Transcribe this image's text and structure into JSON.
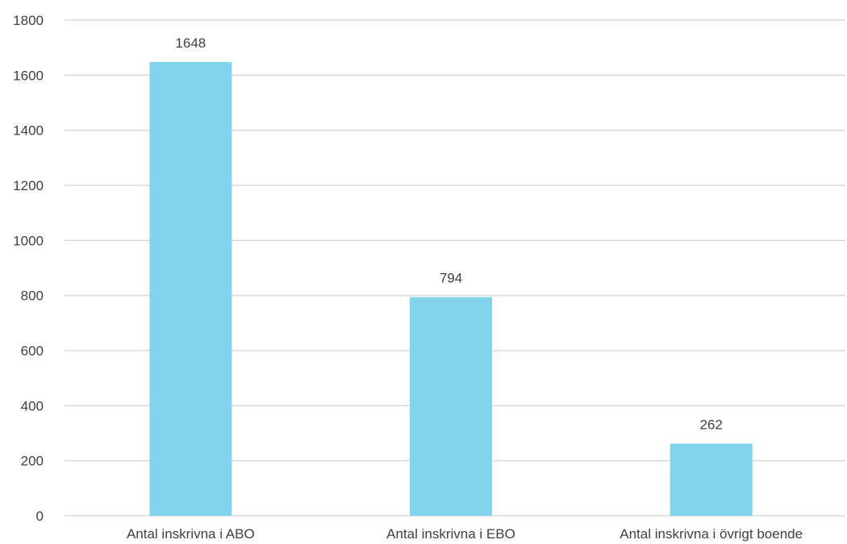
{
  "chart_data": {
    "type": "bar",
    "categories": [
      "Antal inskrivna i ABO",
      "Antal inskrivna i EBO",
      "Antal inskrivna i övrigt boende"
    ],
    "values": [
      1648,
      794,
      262
    ],
    "data_labels": [
      "1648",
      "794",
      "262"
    ],
    "ylim": [
      0,
      1800
    ],
    "yticks": [
      0,
      200,
      400,
      600,
      800,
      1000,
      1200,
      1400,
      1600,
      1800
    ],
    "title": "",
    "xlabel": "",
    "ylabel": "",
    "grid": true,
    "legend": "none",
    "bar_color": "#82d3ee",
    "grid_color": "#d9d9d9",
    "text_color": "#404040"
  }
}
